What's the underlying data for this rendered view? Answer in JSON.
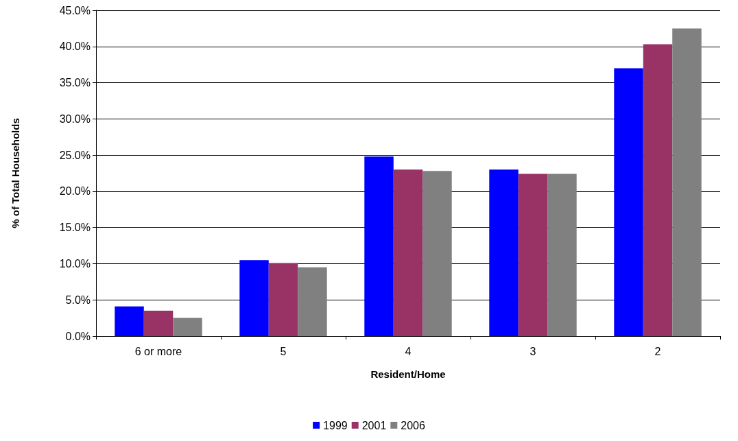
{
  "chart_data": {
    "type": "bar",
    "xlabel": "Resident/Home",
    "ylabel": "% of Total Households",
    "categories": [
      "6 or more",
      "5",
      "4",
      "3",
      "2"
    ],
    "series": [
      {
        "name": "1999",
        "color": "#0000ff",
        "values": [
          4.1,
          10.5,
          24.8,
          23.0,
          37.0
        ]
      },
      {
        "name": "2001",
        "color": "#993366",
        "values": [
          3.5,
          10.1,
          23.0,
          22.4,
          40.3
        ]
      },
      {
        "name": "2006",
        "color": "#808080",
        "values": [
          2.5,
          9.5,
          22.8,
          22.4,
          42.5
        ]
      }
    ],
    "ylim": [
      0,
      45
    ],
    "yticks": [
      {
        "value": 0,
        "label": "0.0%"
      },
      {
        "value": 5,
        "label": "5.0%"
      },
      {
        "value": 10,
        "label": "10.0%"
      },
      {
        "value": 15,
        "label": "15.0%"
      },
      {
        "value": 20,
        "label": "20.0%"
      },
      {
        "value": 25,
        "label": "25.0%"
      },
      {
        "value": 30,
        "label": "30.0%"
      },
      {
        "value": 35,
        "label": "35.0%"
      },
      {
        "value": 40,
        "label": "40.0%"
      },
      {
        "value": 45,
        "label": "45.0%"
      }
    ],
    "grid": "y",
    "legend": "bottom"
  }
}
